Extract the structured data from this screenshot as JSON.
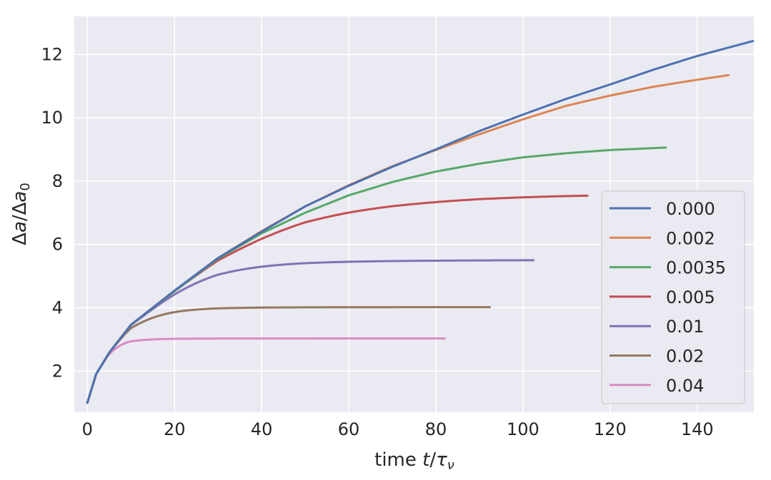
{
  "chart_data": {
    "type": "line",
    "title": "",
    "xlabel": "time",
    "ylabel": "",
    "xlim": [
      -3,
      153
    ],
    "ylim": [
      0.7,
      13.2
    ],
    "grid": true,
    "legend_position": "right",
    "background": "#eaeaf2",
    "x_ticks": [
      0,
      20,
      40,
      60,
      80,
      100,
      120,
      140
    ],
    "x_tick_labels": [
      "0",
      "20",
      "40",
      "60",
      "80",
      "100",
      "120",
      "140"
    ],
    "y_ticks": [
      2,
      4,
      6,
      8,
      10,
      12
    ],
    "y_tick_labels": [
      "2",
      "4",
      "6",
      "8",
      "10",
      "12"
    ],
    "series": [
      {
        "name": "0.000",
        "color": "#4c72b0",
        "x_end": 153,
        "plateau": null,
        "points": [
          [
            0,
            1.0
          ],
          [
            2,
            1.9
          ],
          [
            5,
            2.58
          ],
          [
            10,
            3.46
          ],
          [
            15,
            4.0
          ],
          [
            20,
            4.54
          ],
          [
            30,
            5.57
          ],
          [
            40,
            6.4
          ],
          [
            50,
            7.2
          ],
          [
            60,
            7.85
          ],
          [
            70,
            8.45
          ],
          [
            80,
            9.0
          ],
          [
            90,
            9.58
          ],
          [
            100,
            10.1
          ],
          [
            110,
            10.6
          ],
          [
            120,
            11.05
          ],
          [
            130,
            11.52
          ],
          [
            140,
            11.95
          ],
          [
            153,
            12.43
          ]
        ]
      },
      {
        "name": "0.002",
        "color": "#dd8452",
        "x_end": 147.5,
        "plateau": null,
        "points": [
          [
            0,
            1.0
          ],
          [
            2,
            1.9
          ],
          [
            5,
            2.58
          ],
          [
            10,
            3.46
          ],
          [
            15,
            4.0
          ],
          [
            20,
            4.54
          ],
          [
            30,
            5.57
          ],
          [
            40,
            6.42
          ],
          [
            50,
            7.2
          ],
          [
            60,
            7.87
          ],
          [
            70,
            8.47
          ],
          [
            80,
            8.98
          ],
          [
            90,
            9.48
          ],
          [
            100,
            9.95
          ],
          [
            110,
            10.38
          ],
          [
            120,
            10.7
          ],
          [
            130,
            10.98
          ],
          [
            140,
            11.2
          ],
          [
            147.5,
            11.35
          ]
        ]
      },
      {
        "name": "0.0035",
        "color": "#55a868",
        "x_end": 133,
        "plateau": null,
        "points": [
          [
            0,
            1.0
          ],
          [
            2,
            1.9
          ],
          [
            5,
            2.58
          ],
          [
            10,
            3.46
          ],
          [
            15,
            4.0
          ],
          [
            20,
            4.52
          ],
          [
            30,
            5.55
          ],
          [
            40,
            6.35
          ],
          [
            50,
            7.0
          ],
          [
            60,
            7.55
          ],
          [
            70,
            7.97
          ],
          [
            80,
            8.3
          ],
          [
            90,
            8.55
          ],
          [
            100,
            8.75
          ],
          [
            110,
            8.88
          ],
          [
            120,
            8.98
          ],
          [
            133,
            9.06
          ]
        ]
      },
      {
        "name": "0.005",
        "color": "#c44e52",
        "x_end": 115,
        "plateau": 7.64,
        "tau": 19
      },
      {
        "name": "0.01",
        "color": "#8172b3",
        "x_end": 102.5,
        "plateau": 5.51,
        "tau": 9.2
      },
      {
        "name": "0.02",
        "color": "#937860",
        "x_end": 92.5,
        "plateau": 4.02,
        "tau": 4.7
      },
      {
        "name": "0.04",
        "color": "#da8bc3",
        "x_end": 82,
        "plateau": 3.03,
        "tau": 2.8
      }
    ]
  }
}
